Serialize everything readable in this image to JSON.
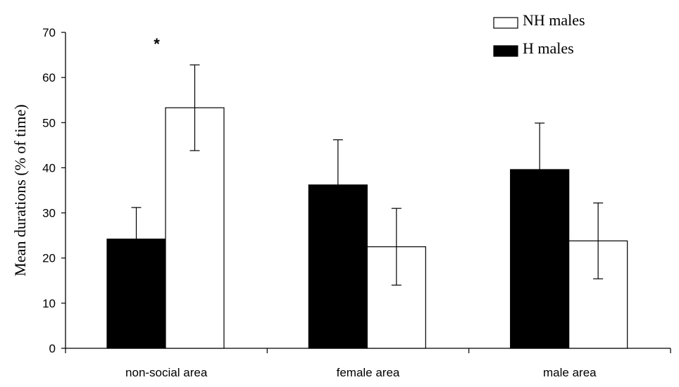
{
  "chart_data": {
    "type": "bar",
    "categories": [
      "non-social area",
      "female area",
      "male area"
    ],
    "series": [
      {
        "name": "H males",
        "color": "#000000",
        "values": [
          24.2,
          36.2,
          39.6
        ],
        "errors": [
          7.0,
          10.0,
          10.3
        ]
      },
      {
        "name": "NH males",
        "color": "#ffffff",
        "values": [
          53.3,
          22.5,
          23.8
        ],
        "errors": [
          9.5,
          8.5,
          8.4
        ]
      }
    ],
    "ylabel": "Mean durations (% of time)",
    "xlabel": "",
    "ylim": [
      0,
      70
    ],
    "yticks": [
      0,
      10,
      20,
      30,
      40,
      50,
      60,
      70
    ],
    "grid": false,
    "legend_position": "top-right",
    "annotations": [
      {
        "text": "*",
        "category_index": 0
      }
    ]
  }
}
